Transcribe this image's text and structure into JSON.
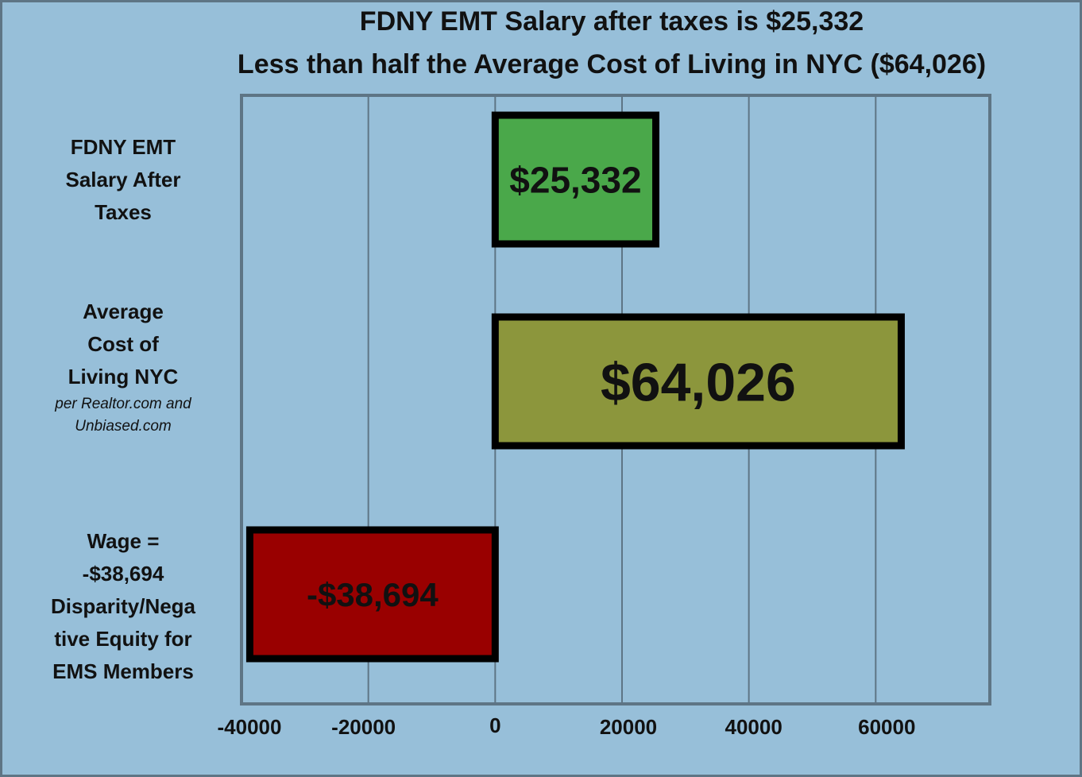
{
  "chart_data": {
    "type": "bar",
    "orientation": "horizontal",
    "title": "FDNY EMT Salary after taxes is $25,332",
    "subtitle": "Less than half the Average Cost of Living in NYC ($64,026)",
    "categories": [
      {
        "lines": [
          "FDNY EMT",
          "Salary After",
          "Taxes"
        ],
        "note_lines": []
      },
      {
        "lines": [
          "Average",
          "Cost of",
          "Living NYC"
        ],
        "note_lines": [
          "per Realtor.com and",
          "Unbiased.com"
        ]
      },
      {
        "lines": [
          "Wage =",
          "-$38,694",
          "Disparity/Nega",
          "tive Equity for",
          "EMS Members"
        ],
        "note_lines": []
      }
    ],
    "values": [
      25332,
      64026,
      -38694
    ],
    "data_labels": [
      "$25,332",
      "$64,026",
      "-$38,694"
    ],
    "bar_colors": [
      "#4aa84a",
      "#8c963c",
      "#990000"
    ],
    "xlim": [
      -40000,
      78000
    ],
    "x_ticks": [
      -40000,
      -20000,
      0,
      20000,
      40000,
      60000
    ],
    "x_tick_labels": [
      "-40000",
      "-20000",
      "0",
      "20000",
      "40000",
      "60000"
    ],
    "grid": true
  },
  "colors": {
    "background": "#97bfd9",
    "gridline": "#5e7585",
    "bar_border": "#000000"
  }
}
